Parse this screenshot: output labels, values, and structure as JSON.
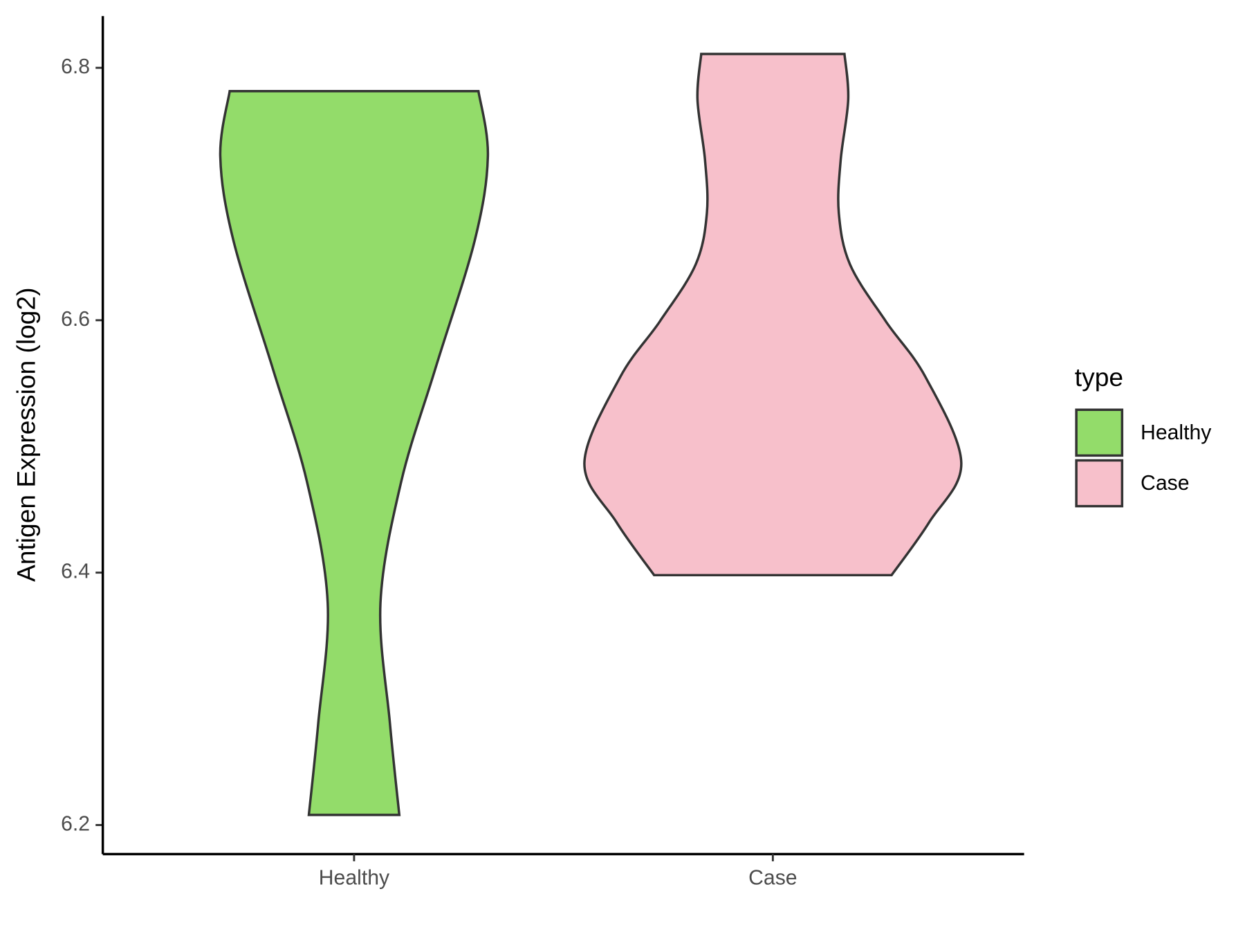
{
  "chart_data": {
    "type": "violin",
    "y_label": "Antigen Expression (log2)",
    "legend_title": "type",
    "legend_position": "right",
    "categories": [
      "Healthy",
      "Case"
    ],
    "series": [
      {
        "name": "Healthy",
        "color": "#93dc6a",
        "y": [
          6.7815,
          6.73,
          6.663,
          6.561,
          6.472,
          6.376,
          6.281,
          6.208
        ],
        "density": [
          0.66,
          0.71,
          0.64,
          0.43,
          0.25,
          0.14,
          0.19,
          0.24
        ]
      },
      {
        "name": "Case",
        "color": "#f7c0cb",
        "y": [
          6.811,
          6.775,
          6.727,
          6.685,
          6.644,
          6.599,
          6.555,
          6.487,
          6.44,
          6.398
        ],
        "density": [
          0.38,
          0.4,
          0.36,
          0.35,
          0.41,
          0.6,
          0.81,
          1.0,
          0.83,
          0.63
        ]
      }
    ],
    "ylim": [
      6.177,
      6.841
    ],
    "yticks": [
      6.2,
      6.4,
      6.6,
      6.8
    ]
  }
}
